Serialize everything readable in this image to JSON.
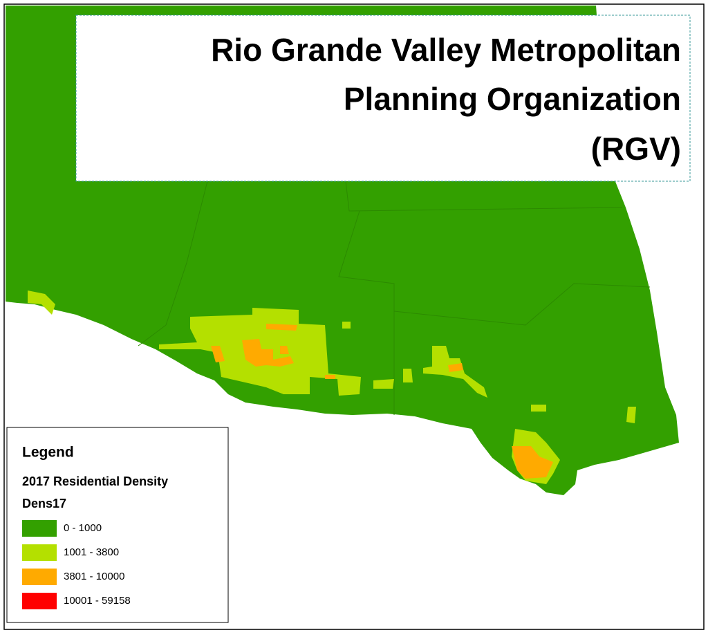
{
  "title": {
    "lines": [
      "Rio Grande Valley Metropolitan",
      "Planning Organization",
      "(RGV)"
    ]
  },
  "legend": {
    "heading": "Legend",
    "layer": "2017 Residential Density",
    "field": "Dens17",
    "items": [
      {
        "label": "0 - 1000",
        "color": "#33a000"
      },
      {
        "label": "1001 - 3800",
        "color": "#b4e000"
      },
      {
        "label": "3801 - 10000",
        "color": "#ffaa00"
      },
      {
        "label": "10001 - 59158",
        "color": "#ff0000"
      }
    ]
  }
}
